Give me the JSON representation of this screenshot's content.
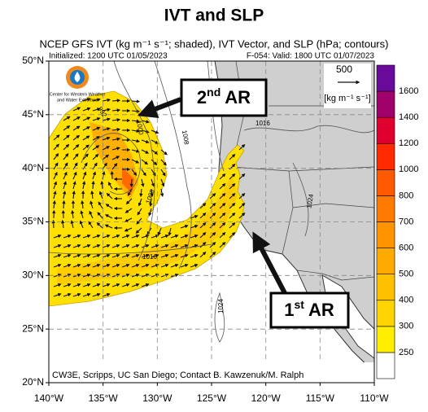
{
  "title": "IVT and SLP",
  "subtitle": "NCEP GFS IVT (kg m⁻¹ s⁻¹; shaded), IVT Vector, and SLP (hPa; contours)",
  "initialized": "Initialized: 1200 UTC 01/05/2023",
  "valid": "F-054: Valid: 1800 UTC 01/07/2023",
  "logo": [
    "Center for Western Weather",
    "and Water Extremes"
  ],
  "latitude_labels": [
    "50°N",
    "45°N",
    "40°N",
    "35°N",
    "30°N",
    "25°N",
    "20°N"
  ],
  "longitude_labels": [
    "140°W",
    "135°W",
    "130°W",
    "125°W",
    "120°W",
    "115°W",
    "110°W"
  ],
  "vector_reference": {
    "value": "500",
    "units": "[kg m⁻¹ s⁻¹]"
  },
  "annotations": [
    {
      "ordinal": "2",
      "suffix": "nd",
      "text": "AR"
    },
    {
      "ordinal": "1",
      "suffix": "st",
      "text": "AR"
    }
  ],
  "contour_labels": [
    "992",
    "1000",
    "1008",
    "1008",
    "1016",
    "1016",
    "1024",
    "1024"
  ],
  "colorbar": {
    "labels": [
      250,
      300,
      400,
      500,
      600,
      700,
      800,
      1000,
      1200,
      1400,
      1600
    ],
    "colors": [
      "#ffffff",
      "#ffee00",
      "#ffd400",
      "#ffc000",
      "#ffaa00",
      "#ff9400",
      "#ff7a00",
      "#ff5a00",
      "#ff2a00",
      "#e00030",
      "#a0006a",
      "#6a0a9a"
    ]
  },
  "credit": "CW3E, Scripps, UC San Diego; Contact B. Kawzenuk/M. Ralph"
}
